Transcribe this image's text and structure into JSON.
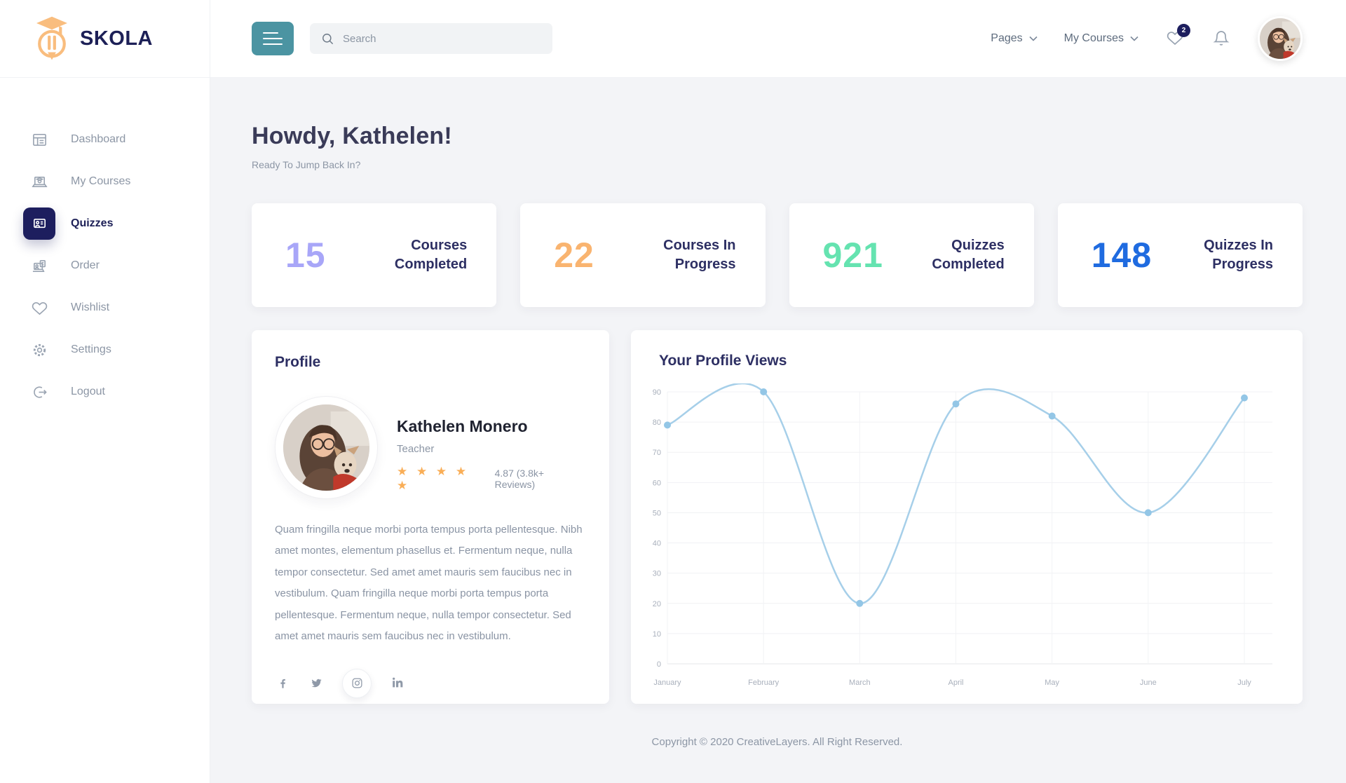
{
  "brand": {
    "name": "SKOLA"
  },
  "colors": {
    "navy": "#1d1e5e",
    "teal": "#4b94a2",
    "star": "#f9ae57",
    "page_bg": "#f3f4f7"
  },
  "header": {
    "search_placeholder": "Search",
    "nav_pages": "Pages",
    "nav_my_courses": "My Courses",
    "wishlist_count": "2"
  },
  "sidebar": {
    "items": [
      {
        "label": "Dashboard"
      },
      {
        "label": "My Courses"
      },
      {
        "label": "Quizzes"
      },
      {
        "label": "Order"
      },
      {
        "label": "Wishlist"
      },
      {
        "label": "Settings"
      },
      {
        "label": "Logout"
      }
    ]
  },
  "main": {
    "greeting_title": "Howdy, Kathelen!",
    "greeting_subtitle": "Ready To Jump Back In?",
    "stats": [
      {
        "value": "15",
        "label": "Courses Completed",
        "color": "#a8a6f8"
      },
      {
        "value": "22",
        "label": "Courses In Progress",
        "color": "#f9b470"
      },
      {
        "value": "921",
        "label": "Quizzes Completed",
        "color": "#65e3b0"
      },
      {
        "value": "148",
        "label": "Quizzes In Progress",
        "color": "#1f6be0"
      }
    ],
    "profile": {
      "card_title": "Profile",
      "name": "Kathelen Monero",
      "role": "Teacher",
      "stars": "★ ★ ★ ★ ★",
      "rating_text": "4.87 (3.8k+ Reviews)",
      "bio": "Quam fringilla neque morbi porta tempus porta pellentesque. Nibh amet montes, elementum phasellus et. Fermentum neque, nulla tempor consectetur. Sed amet amet mauris sem faucibus nec in vestibulum. Quam fringilla neque morbi porta tempus porta pellentesque. Fermentum neque, nulla tempor consectetur. Sed amet amet mauris sem faucibus nec in vestibulum."
    },
    "chart_title": "Your Profile Views"
  },
  "chart_data": {
    "type": "line",
    "title": "Your Profile Views",
    "x": [
      "January",
      "February",
      "March",
      "April",
      "May",
      "June",
      "July"
    ],
    "series": [
      {
        "name": "Profile Views",
        "values": [
          79,
          90,
          20,
          86,
          82,
          50,
          88
        ]
      }
    ],
    "ylim": [
      0,
      90
    ],
    "ytick_step": 10,
    "grid": true,
    "legend": false,
    "line_color": "#a6cfe9",
    "point_color": "#93c6e6"
  },
  "footer": {
    "copyright": "Copyright © 2020 CreativeLayers. All Right Reserved."
  }
}
